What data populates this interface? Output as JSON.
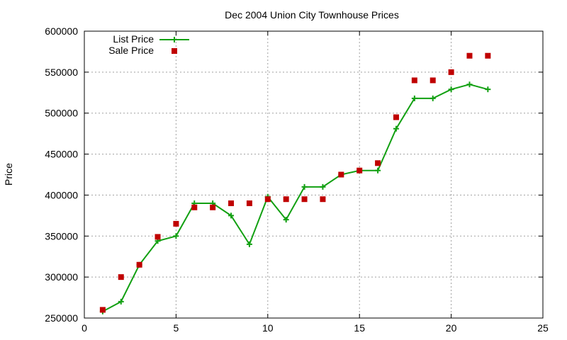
{
  "chart_data": {
    "type": "line",
    "title": "Dec 2004 Union City Townhouse Prices",
    "xlabel": "",
    "ylabel": "Price",
    "xlim": [
      0,
      25
    ],
    "ylim": [
      250000,
      600000
    ],
    "x_ticks": [
      0,
      5,
      10,
      15,
      20,
      25
    ],
    "y_ticks": [
      250000,
      300000,
      350000,
      400000,
      450000,
      500000,
      550000,
      600000
    ],
    "grid": true,
    "legend_position": "top-left",
    "series": [
      {
        "name": "List Price",
        "style": "line-plus",
        "color": "#12a012",
        "x": [
          1,
          2,
          3,
          4,
          5,
          6,
          7,
          8,
          9,
          10,
          11,
          12,
          13,
          14,
          15,
          16,
          17,
          18,
          19,
          20,
          21,
          22
        ],
        "y": [
          258000,
          270000,
          315000,
          344000,
          350000,
          390000,
          390000,
          375000,
          340000,
          398000,
          370000,
          410000,
          410000,
          425000,
          430000,
          430000,
          481000,
          518000,
          518000,
          529000,
          535000,
          529000
        ]
      },
      {
        "name": "Sale Price",
        "style": "square",
        "color": "#c00000",
        "x": [
          1,
          2,
          3,
          4,
          5,
          6,
          7,
          8,
          9,
          10,
          11,
          12,
          13,
          14,
          15,
          16,
          17,
          18,
          19,
          20,
          21,
          22
        ],
        "y": [
          260000,
          300000,
          315000,
          349000,
          365000,
          385000,
          385000,
          390000,
          390000,
          395000,
          395000,
          395000,
          395000,
          425000,
          430000,
          439000,
          495000,
          540000,
          540000,
          550000,
          570000,
          570000
        ]
      }
    ]
  }
}
